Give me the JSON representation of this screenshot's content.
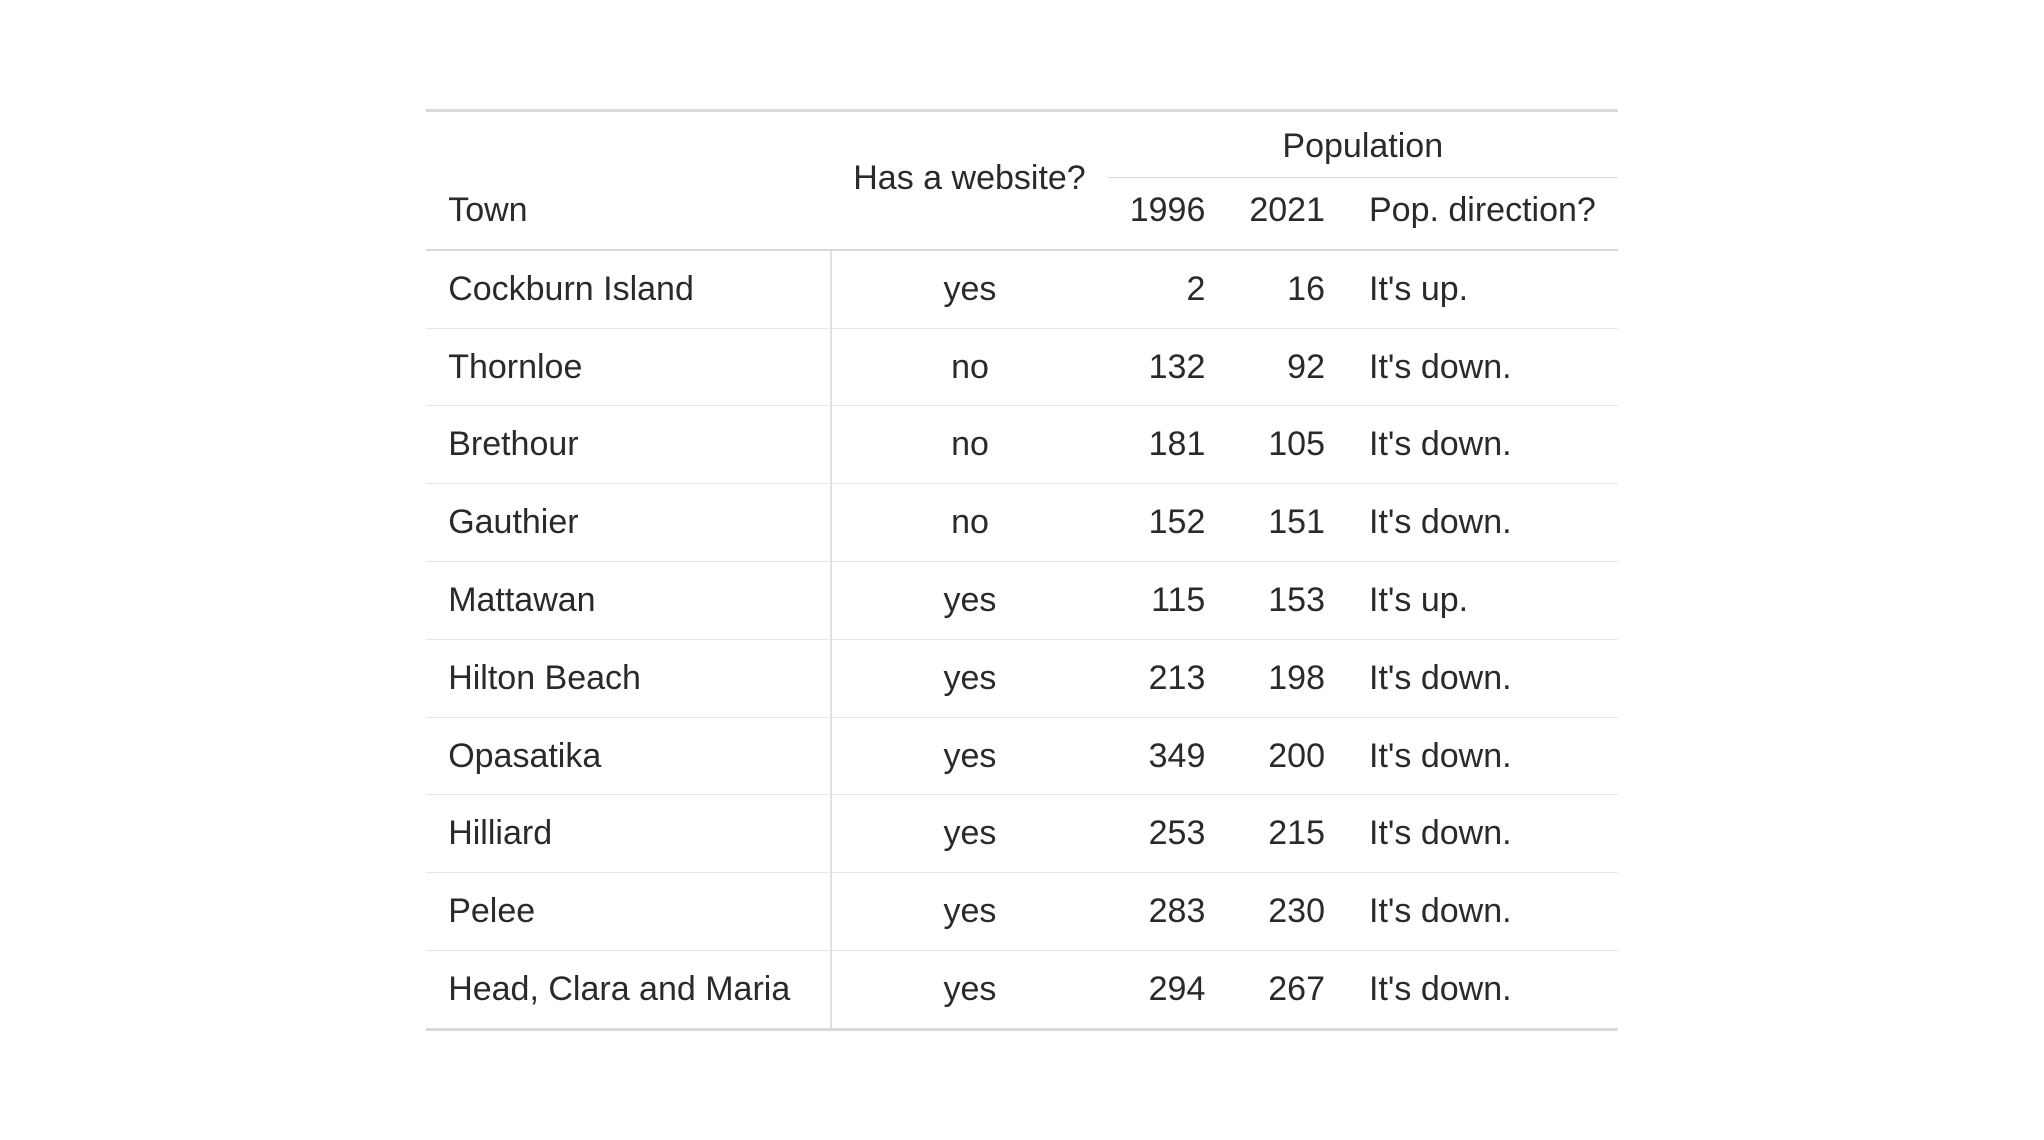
{
  "table": {
    "type": "table",
    "background_color": "#ffffff",
    "text_color": "#2a2a2a",
    "border_color_heavy": "#d9d9d9",
    "border_color_light": "#e6e6e6",
    "vrule_color": "#e0e0e0",
    "font_size_pt": 26,
    "headers": {
      "town": "Town",
      "website": "Has a website?",
      "pop_group": "Population",
      "year1": "1996",
      "year2": "2021",
      "direction": "Pop. direction?"
    },
    "columns": [
      "town",
      "website",
      "pop_1996",
      "pop_2021",
      "direction"
    ],
    "column_align": [
      "left",
      "center",
      "right",
      "right",
      "left"
    ],
    "rows": [
      {
        "town": "Cockburn Island",
        "website": "yes",
        "pop_1996": "2",
        "pop_2021": "16",
        "direction": "It's up."
      },
      {
        "town": "Thornloe",
        "website": "no",
        "pop_1996": "132",
        "pop_2021": "92",
        "direction": "It's down."
      },
      {
        "town": "Brethour",
        "website": "no",
        "pop_1996": "181",
        "pop_2021": "105",
        "direction": "It's down."
      },
      {
        "town": "Gauthier",
        "website": "no",
        "pop_1996": "152",
        "pop_2021": "151",
        "direction": "It's down."
      },
      {
        "town": "Mattawan",
        "website": "yes",
        "pop_1996": "115",
        "pop_2021": "153",
        "direction": "It's up."
      },
      {
        "town": "Hilton Beach",
        "website": "yes",
        "pop_1996": "213",
        "pop_2021": "198",
        "direction": "It's down."
      },
      {
        "town": "Opasatika",
        "website": "yes",
        "pop_1996": "349",
        "pop_2021": "200",
        "direction": "It's down."
      },
      {
        "town": "Hilliard",
        "website": "yes",
        "pop_1996": "253",
        "pop_2021": "215",
        "direction": "It's down."
      },
      {
        "town": "Pelee",
        "website": "yes",
        "pop_1996": "283",
        "pop_2021": "230",
        "direction": "It's down."
      },
      {
        "town": "Head, Clara and Maria",
        "website": "yes",
        "pop_1996": "294",
        "pop_2021": "267",
        "direction": "It's down."
      }
    ]
  }
}
